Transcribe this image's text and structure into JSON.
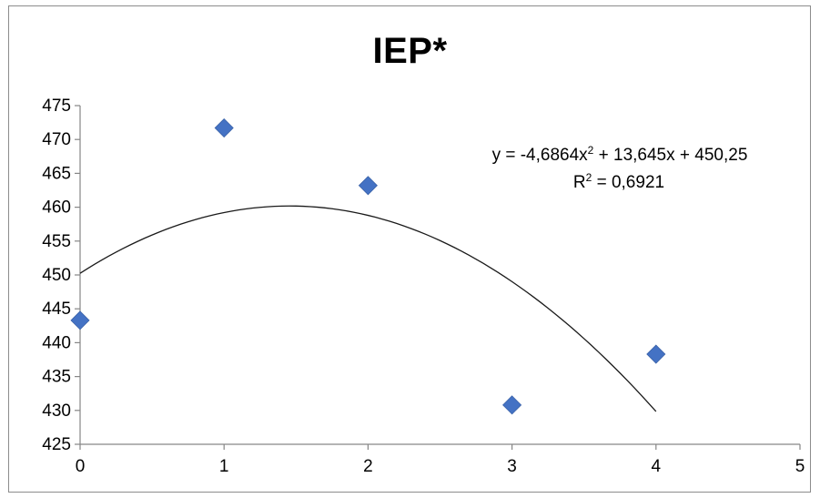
{
  "chart_data": {
    "type": "scatter",
    "title": "IEP*",
    "x": [
      0,
      1,
      2,
      3,
      4
    ],
    "y": [
      443.3,
      471.7,
      463.2,
      430.8,
      438.3
    ],
    "xlim": [
      0,
      5
    ],
    "ylim": [
      425,
      475
    ],
    "x_ticks": [
      "0",
      "1",
      "2",
      "3",
      "4",
      "5"
    ],
    "y_ticks": [
      "425",
      "430",
      "435",
      "440",
      "445",
      "450",
      "455",
      "460",
      "465",
      "470",
      "475"
    ],
    "marker_color": "#4472c4",
    "trendline": {
      "type": "polynomial",
      "order": 2,
      "coefficients": [
        -4.6864,
        13.645,
        450.25
      ],
      "x_range": [
        0,
        4
      ],
      "equation_prefix": "y = -4,6864x",
      "equation_sup": "2",
      "equation_suffix": " + 13,645x + 450,25",
      "r2_prefix": "R",
      "r2_sup": "2",
      "r2_suffix": " = 0,6921"
    },
    "grid": false,
    "legend": "none"
  }
}
